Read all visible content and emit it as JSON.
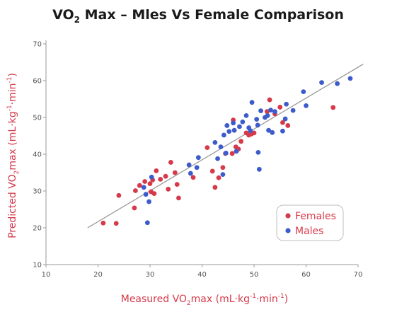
{
  "chart_data": {
    "type": "scatter",
    "title": {
      "pre": "VO",
      "sub": "2",
      "post": " Max – Mles Vs Female Comparison"
    },
    "xlabel": {
      "pre": "Measured VO",
      "sub": "2",
      "mid": "max (mL·kg",
      "sup1": "-1",
      "mid2": "·min",
      "sup2": "-1",
      "post": ")"
    },
    "ylabel": {
      "pre": "Predicted VO",
      "sub": "2",
      "mid": "max (mL·kg",
      "sup1": "-1",
      "mid2": "·min",
      "sup2": "-1",
      "post": ")"
    },
    "xlim": [
      10,
      70
    ],
    "ylim": [
      10,
      70
    ],
    "xticks": [
      "10",
      "20",
      "30",
      "40",
      "50",
      "60",
      "70"
    ],
    "yticks": [
      "10",
      "20",
      "30",
      "40",
      "50",
      "60",
      "70"
    ],
    "grid": false,
    "legend_position": "bottom-right",
    "trendline": {
      "x": [
        18,
        71
      ],
      "y": [
        20,
        64.5
      ],
      "color": "#9a9a9a"
    },
    "series": [
      {
        "name": "Females",
        "color": "#d63a4a",
        "points": [
          [
            21,
            21.3
          ],
          [
            23.5,
            21.2
          ],
          [
            24,
            28.8
          ],
          [
            27,
            25.4
          ],
          [
            27.2,
            30.1
          ],
          [
            28,
            31.5
          ],
          [
            29,
            32.6
          ],
          [
            30,
            32
          ],
          [
            30.2,
            29.8
          ],
          [
            30.5,
            33
          ],
          [
            30.8,
            29.3
          ],
          [
            31.2,
            35.5
          ],
          [
            32,
            33.2
          ],
          [
            33,
            34
          ],
          [
            33.5,
            30.5
          ],
          [
            34,
            37.8
          ],
          [
            34.8,
            35
          ],
          [
            35.2,
            31.8
          ],
          [
            35.5,
            28.1
          ],
          [
            38.3,
            33.7
          ],
          [
            41,
            41.8
          ],
          [
            42,
            35.4
          ],
          [
            42.5,
            31
          ],
          [
            43.2,
            33.6
          ],
          [
            44,
            36.4
          ],
          [
            44.5,
            40.2
          ],
          [
            45.8,
            40.2
          ],
          [
            46,
            49.3
          ],
          [
            46.5,
            42
          ],
          [
            47,
            41.4
          ],
          [
            47.5,
            43.5
          ],
          [
            48.5,
            45.8
          ],
          [
            49,
            45.2
          ],
          [
            49.5,
            45.5
          ],
          [
            50,
            45.8
          ],
          [
            52.5,
            51.6
          ],
          [
            53,
            54.8
          ],
          [
            54,
            51
          ],
          [
            55,
            52.8
          ],
          [
            55.5,
            48.6
          ],
          [
            56.5,
            47.8
          ],
          [
            65.2,
            52.7
          ]
        ]
      },
      {
        "name": "Males",
        "color": "#3d5ccc",
        "points": [
          [
            28.8,
            31
          ],
          [
            29.2,
            29.1
          ],
          [
            29.5,
            21.4
          ],
          [
            29.8,
            27.1
          ],
          [
            30.3,
            33.8
          ],
          [
            37.5,
            37.1
          ],
          [
            37.8,
            34.8
          ],
          [
            39,
            36.4
          ],
          [
            39.3,
            39.1
          ],
          [
            42.5,
            43.2
          ],
          [
            43,
            38.8
          ],
          [
            43.6,
            42
          ],
          [
            44,
            34.5
          ],
          [
            44.2,
            45.2
          ],
          [
            44.6,
            40.3
          ],
          [
            44.8,
            47.8
          ],
          [
            45.2,
            46.2
          ],
          [
            46,
            48.5
          ],
          [
            46.2,
            46.5
          ],
          [
            46.6,
            40.8
          ],
          [
            47.2,
            47.5
          ],
          [
            47.8,
            48.8
          ],
          [
            48.5,
            50.5
          ],
          [
            49,
            47.2
          ],
          [
            49.3,
            46.4
          ],
          [
            49.6,
            54.1
          ],
          [
            50.5,
            49.5
          ],
          [
            50.7,
            47.9
          ],
          [
            50.8,
            40.5
          ],
          [
            51,
            35.9
          ],
          [
            51.3,
            51.8
          ],
          [
            52.1,
            50
          ],
          [
            52.6,
            50.5
          ],
          [
            52.8,
            46.5
          ],
          [
            53.2,
            52
          ],
          [
            53.5,
            45.9
          ],
          [
            54,
            51.6
          ],
          [
            55.5,
            46.3
          ],
          [
            56,
            49.6
          ],
          [
            56.2,
            53.6
          ],
          [
            57.5,
            51.9
          ],
          [
            59.5,
            57
          ],
          [
            60,
            53.2
          ],
          [
            63,
            59.5
          ],
          [
            66,
            59.2
          ],
          [
            68.5,
            60.6
          ]
        ]
      }
    ]
  }
}
